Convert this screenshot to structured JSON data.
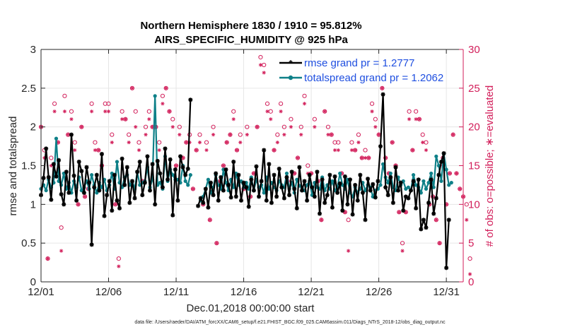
{
  "chart_data": {
    "type": "line",
    "title": "Northern Hemisphere 1830 / 1910 = 95.812%",
    "subtitle": "AIRS_SPECIFIC_HUMIDITY @ 925 hPa",
    "xlabel": "Dec.01,2018 00:00:00 start",
    "ylabel": "rmse and totalspread",
    "ylabel_right": "# of obs: o=possible; ∗=evaluated",
    "xlim": [
      0,
      31.25
    ],
    "ylim": [
      0,
      3
    ],
    "ylim_right": [
      0,
      30
    ],
    "x_ticks": [
      0,
      5,
      10,
      15,
      20,
      25,
      30
    ],
    "x_tick_labels": [
      "12/01",
      "12/06",
      "12/11",
      "12/16",
      "12/21",
      "12/26",
      "12/31"
    ],
    "y_ticks": [
      "0",
      "0.5",
      "1",
      "1.5",
      "2",
      "2.5",
      "3"
    ],
    "y_ticks_right": [
      "0",
      "5",
      "10",
      "15",
      "20",
      "25",
      "30"
    ],
    "grid": true,
    "legend": "top-right",
    "footnote": "data file: /Users/raeder/DAI/ATM_forcXX/CAM6_setup/f.e21.FHIST_BGC.f09_025.CAM6assim.011/Diags_NTrS_2018-12/obs_diag_output.nc",
    "series": [
      {
        "name": "rmse grand pr = 1.2777",
        "color": "#000000",
        "marker": "asterisk",
        "values": [
          1.12,
          1.34,
          1.72,
          1.35,
          1.06,
          1.52,
          1.36,
          1.57,
          1.13,
          1.0,
          1.42,
          1.15,
          1.9,
          1.37,
          1.05,
          1.55,
          1.43,
          1.15,
          1.48,
          1.28,
          0.48,
          1.22,
          1.38,
          1.18,
          1.65,
          0.85,
          1.12,
          1.3,
          0.92,
          1.38,
          1.05,
          0.95,
          1.59,
          1.25,
          1.48,
          1.02,
          1.3,
          1.08,
          1.42,
          1.55,
          1.12,
          1.28,
          1.62,
          1.18,
          1.52,
          1.0,
          1.56,
          1.4,
          1.22,
          1.72,
          1.32,
          1.58,
          0.86,
          1.45,
          1.05,
          1.62,
          1.48,
          1.38,
          1.46,
          2.35,
          null,
          null,
          0.98,
          1.08,
          1.02,
          1.2,
          0.96,
          1.28,
          1.12,
          1.4,
          1.05,
          1.35,
          1.18,
          1.45,
          1.25,
          1.09,
          1.55,
          1.1,
          1.38,
          1.05,
          1.28,
          1.22,
          0.97,
          1.32,
          1.18,
          1.49,
          1.1,
          1.3,
          1.7,
          1.05,
          1.52,
          1.02,
          1.38,
          1.1,
          1.46,
          1.22,
          1.08,
          1.35,
          1.12,
          1.42,
          1.2,
          0.95,
          1.48,
          1.18,
          1.3,
          1.05,
          1.38,
          1.22,
          1.1,
          1.42,
          0.88,
          1.32,
          1.02,
          1.12,
          1.38,
          0.96,
          1.36,
          1.15,
          1.27,
          0.92,
          1.36,
          1.0,
          1.32,
          0.87,
          1.25,
          1.05,
          1.38,
          1.15,
          0.8,
          1.33,
          1.18,
          1.26,
          1.09,
          1.3,
          1.75,
          2.42,
          1.22,
          1.12,
          1.35,
          1.02,
          1.48,
          1.18,
          1.28,
          0.92,
          1.1,
          1.08,
          1.18,
          1.3,
          0.95,
          1.32,
          0.68,
          0.8,
          0.7,
          1.02,
          1.32,
          0.88,
          1.08,
          1.38,
          1.55,
          1.66,
          0.18,
          0.8
        ],
        "x_start": 0.0,
        "x_step": 0.1875
      },
      {
        "name": "totalspread grand pr = 1.2062",
        "color": "#0e8088",
        "marker": "dot",
        "values": [
          1.2,
          1.25,
          1.18,
          1.32,
          1.22,
          1.28,
          1.85,
          1.3,
          1.25,
          1.4,
          1.2,
          1.28,
          1.15,
          1.3,
          1.22,
          1.35,
          1.18,
          1.22,
          1.3,
          1.2,
          1.38,
          1.25,
          1.15,
          1.28,
          1.22,
          1.32,
          1.18,
          1.25,
          1.4,
          1.2,
          1.55,
          1.28,
          1.22,
          1.35,
          1.38,
          1.25,
          1.3,
          1.2,
          1.42,
          1.25,
          1.28,
          1.3,
          1.48,
          1.22,
          1.32,
          2.4,
          1.25,
          1.28,
          1.2,
          1.62,
          1.3,
          1.45,
          1.38,
          1.32,
          1.32,
          1.28,
          1.5,
          1.3,
          1.25,
          1.38,
          null,
          null,
          null,
          1.05,
          1.1,
          1.2,
          1.32,
          1.15,
          1.22,
          1.38,
          1.25,
          1.2,
          1.45,
          1.28,
          1.18,
          1.32,
          1.22,
          1.4,
          1.25,
          1.3,
          1.22,
          1.28,
          1.2,
          1.35,
          1.18,
          1.32,
          1.22,
          1.25,
          1.15,
          1.35,
          1.2,
          1.28,
          1.22,
          1.18,
          1.3,
          1.25,
          1.22,
          1.4,
          1.2,
          1.28,
          1.15,
          1.32,
          1.24,
          1.22,
          1.18,
          1.25,
          1.3,
          1.12,
          1.28,
          1.22,
          1.2,
          1.35,
          1.18,
          1.25,
          1.2,
          1.3,
          1.18,
          1.22,
          1.4,
          1.25,
          1.2,
          1.32,
          1.15,
          1.1,
          1.22,
          1.15,
          1.2,
          1.28,
          1.18,
          1.25,
          1.22,
          1.1,
          1.18,
          1.2,
          1.25,
          1.52,
          1.35,
          1.28,
          1.4,
          1.22,
          1.18,
          1.35,
          1.25,
          1.3,
          1.2,
          1.22,
          1.18,
          1.38,
          1.25,
          1.22,
          1.15,
          1.3,
          1.2,
          1.28,
          1.4,
          1.22,
          1.62,
          1.5,
          1.3,
          1.65,
          1.45,
          1.25,
          1.28
        ],
        "x_start": 0.0,
        "x_step": 0.1875
      },
      {
        "name": "# of obs possible",
        "axis": "right",
        "color": "#d21e5a",
        "marker": "circle",
        "x_start": 0.0,
        "x_step": 0.25,
        "values": [
          20,
          17,
          3,
          16,
          23,
          18,
          7,
          24,
          19,
          22,
          18,
          10,
          20,
          11,
          12,
          23,
          18,
          17,
          15,
          23,
          23,
          19,
          10,
          3,
          22,
          21,
          19,
          25,
          22,
          18,
          13,
          20,
          22,
          20,
          20,
          18,
          24,
          25,
          22,
          21,
          15,
          20,
          16,
          18,
          19,
          12,
          17,
          19,
          10,
          18,
          8,
          20,
          5,
          13,
          15,
          18,
          19,
          22,
          17,
          19,
          12,
          20,
          11,
          14,
          20,
          29,
          28,
          23,
          22,
          17,
          19,
          23,
          20,
          13,
          21,
          14,
          16,
          20,
          24,
          15,
          14,
          21,
          13,
          8,
          22,
          20,
          19,
          18,
          18,
          14,
          9,
          8,
          18,
          17,
          19,
          16,
          17,
          16,
          23,
          21,
          19,
          25,
          16,
          14,
          18,
          15,
          9,
          5,
          9,
          22,
          17,
          22,
          21,
          19,
          18,
          10,
          11,
          8,
          5,
          16,
          10,
          14,
          19,
          14,
          12,
          11,
          10,
          3
        ]
      },
      {
        "name": "# of obs evaluated",
        "axis": "right",
        "color": "#d21e5a",
        "marker": "asterisk",
        "x_start": 0.0,
        "x_step": 0.25,
        "values": [
          20,
          16,
          3,
          15,
          22,
          18,
          4,
          22,
          19,
          21,
          17,
          10,
          20,
          11,
          12,
          22,
          17,
          17,
          15,
          22,
          22,
          18,
          10,
          2,
          21,
          21,
          18,
          25,
          20,
          17,
          13,
          19,
          21,
          20,
          20,
          17,
          23,
          25,
          22,
          20,
          15,
          19,
          16,
          18,
          18,
          12,
          17,
          18,
          10,
          17,
          8,
          19,
          5,
          13,
          15,
          18,
          19,
          21,
          17,
          18,
          12,
          19,
          11,
          14,
          20,
          28,
          27,
          22,
          21,
          17,
          18,
          22,
          19,
          13,
          20,
          14,
          16,
          19,
          23,
          14,
          14,
          20,
          13,
          8,
          22,
          19,
          19,
          17,
          17,
          14,
          9,
          4,
          17,
          17,
          18,
          16,
          16,
          16,
          22,
          20,
          19,
          25,
          16,
          14,
          18,
          15,
          9,
          4,
          9,
          21,
          17,
          21,
          21,
          18,
          17,
          10,
          11,
          8,
          5,
          15,
          10,
          14,
          19,
          14,
          12,
          11,
          8,
          1
        ]
      }
    ]
  }
}
